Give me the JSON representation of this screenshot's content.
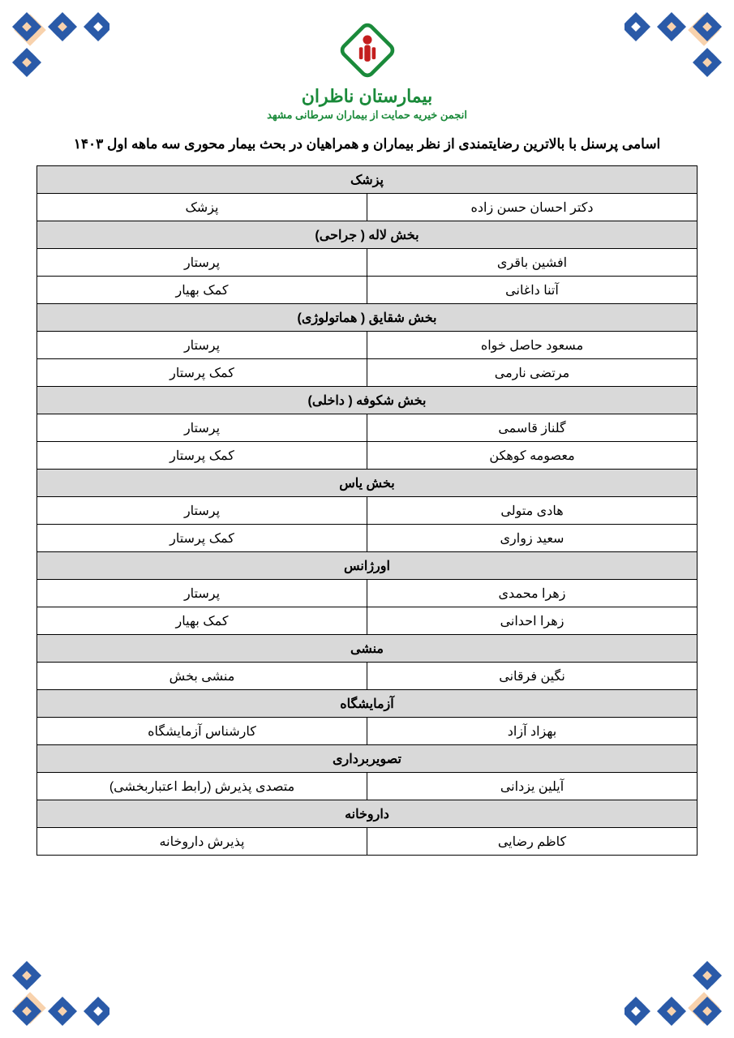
{
  "header": {
    "hospital_name": "بیمارستان ناظران",
    "hospital_sub": "انجمن خیریه حمایت از بیماران سرطانی مشهد"
  },
  "title": "اسامی پرسنل با بالاترین رضایتمندی از نظر بیماران و همراهیان در بحث بیمار محوری سه ماهه اول ۱۴۰۳",
  "colors": {
    "section_bg": "#d9d9d9",
    "border": "#000000",
    "brand_green": "#1a8a3a",
    "brand_red": "#c41e1e",
    "ornament_blue": "#2a5aa8",
    "ornament_orange": "#f5b578"
  },
  "sections": [
    {
      "header": "پزشک",
      "rows": [
        {
          "name": "دکتر احسان حسن زاده",
          "role": "پزشک"
        }
      ]
    },
    {
      "header": "بخش لاله ( جراحی)",
      "rows": [
        {
          "name": "افشین باقری",
          "role": "پرستار"
        },
        {
          "name": "آتنا داغانی",
          "role": "کمک بهیار"
        }
      ]
    },
    {
      "header": "بخش شقایق ( هماتولوژی)",
      "rows": [
        {
          "name": "مسعود حاصل خواه",
          "role": "پرستار"
        },
        {
          "name": "مرتضی نارمی",
          "role": "کمک پرستار"
        }
      ]
    },
    {
      "header": "بخش شکوفه ( داخلی)",
      "rows": [
        {
          "name": "گلناز قاسمی",
          "role": "پرستار"
        },
        {
          "name": "معصومه کوهکن",
          "role": "کمک پرستار"
        }
      ]
    },
    {
      "header": "بخش یاس",
      "rows": [
        {
          "name": "هادی متولی",
          "role": "پرستار"
        },
        {
          "name": "سعید زواری",
          "role": "کمک پرستار"
        }
      ]
    },
    {
      "header": "اورژانس",
      "rows": [
        {
          "name": "زهرا محمدی",
          "role": "پرستار"
        },
        {
          "name": "زهرا احدانی",
          "role": "کمک بهیار"
        }
      ]
    },
    {
      "header": "منشی",
      "rows": [
        {
          "name": "نگین فرقانی",
          "role": "منشی بخش"
        }
      ]
    },
    {
      "header": "آزمایشگاه",
      "rows": [
        {
          "name": "بهزاد آزاد",
          "role": "کارشناس آزمایشگاه"
        }
      ]
    },
    {
      "header": "تصویربرداری",
      "rows": [
        {
          "name": "آیلین یزدانی",
          "role": "متصدی پذیرش  (رابط اعتباربخشی)"
        }
      ]
    },
    {
      "header": "داروخانه",
      "rows": [
        {
          "name": "کاظم رضایی",
          "role": "پذیرش داروخانه"
        }
      ]
    }
  ]
}
